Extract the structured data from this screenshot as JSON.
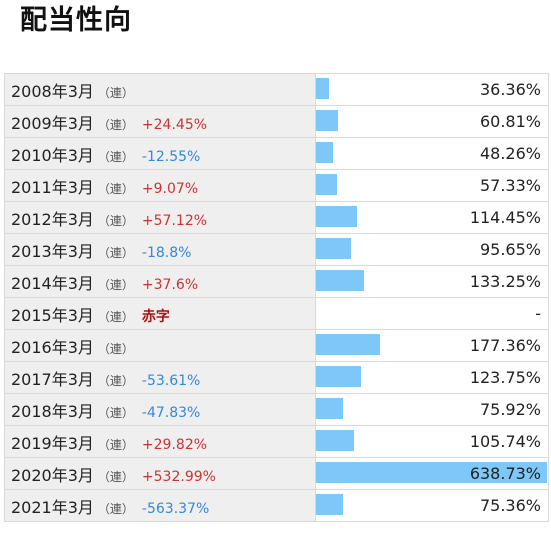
{
  "title": "配当性向",
  "colors": {
    "bar": "#7dc8f8",
    "up": "#cc3333",
    "down": "#3388dd",
    "deficit": "#aa1111"
  },
  "rows": [
    {
      "year": "2008年3月",
      "type": "（連）",
      "change": "",
      "direction": "none",
      "ratio_text": "36.36%",
      "ratio": 36.36
    },
    {
      "year": "2009年3月",
      "type": "（連）",
      "change": "+24.45%",
      "direction": "up",
      "ratio_text": "60.81%",
      "ratio": 60.81
    },
    {
      "year": "2010年3月",
      "type": "（連）",
      "change": "-12.55%",
      "direction": "down",
      "ratio_text": "48.26%",
      "ratio": 48.26
    },
    {
      "year": "2011年3月",
      "type": "（連）",
      "change": "+9.07%",
      "direction": "up",
      "ratio_text": "57.33%",
      "ratio": 57.33
    },
    {
      "year": "2012年3月",
      "type": "（連）",
      "change": "+57.12%",
      "direction": "up",
      "ratio_text": "114.45%",
      "ratio": 114.45
    },
    {
      "year": "2013年3月",
      "type": "（連）",
      "change": "-18.8%",
      "direction": "down",
      "ratio_text": "95.65%",
      "ratio": 95.65
    },
    {
      "year": "2014年3月",
      "type": "（連）",
      "change": "+37.6%",
      "direction": "up",
      "ratio_text": "133.25%",
      "ratio": 133.25
    },
    {
      "year": "2015年3月",
      "type": "（連）",
      "change": "赤字",
      "direction": "deficit",
      "ratio_text": "-",
      "ratio": 0
    },
    {
      "year": "2016年3月",
      "type": "（連）",
      "change": "",
      "direction": "none",
      "ratio_text": "177.36%",
      "ratio": 177.36
    },
    {
      "year": "2017年3月",
      "type": "（連）",
      "change": "-53.61%",
      "direction": "down",
      "ratio_text": "123.75%",
      "ratio": 123.75
    },
    {
      "year": "2018年3月",
      "type": "（連）",
      "change": "-47.83%",
      "direction": "down",
      "ratio_text": "75.92%",
      "ratio": 75.92
    },
    {
      "year": "2019年3月",
      "type": "（連）",
      "change": "+29.82%",
      "direction": "up",
      "ratio_text": "105.74%",
      "ratio": 105.74
    },
    {
      "year": "2020年3月",
      "type": "（連）",
      "change": "+532.99%",
      "direction": "up",
      "ratio_text": "638.73%",
      "ratio": 638.73
    },
    {
      "year": "2021年3月",
      "type": "（連）",
      "change": "-563.37%",
      "direction": "down",
      "ratio_text": "75.36%",
      "ratio": 75.36
    }
  ]
}
